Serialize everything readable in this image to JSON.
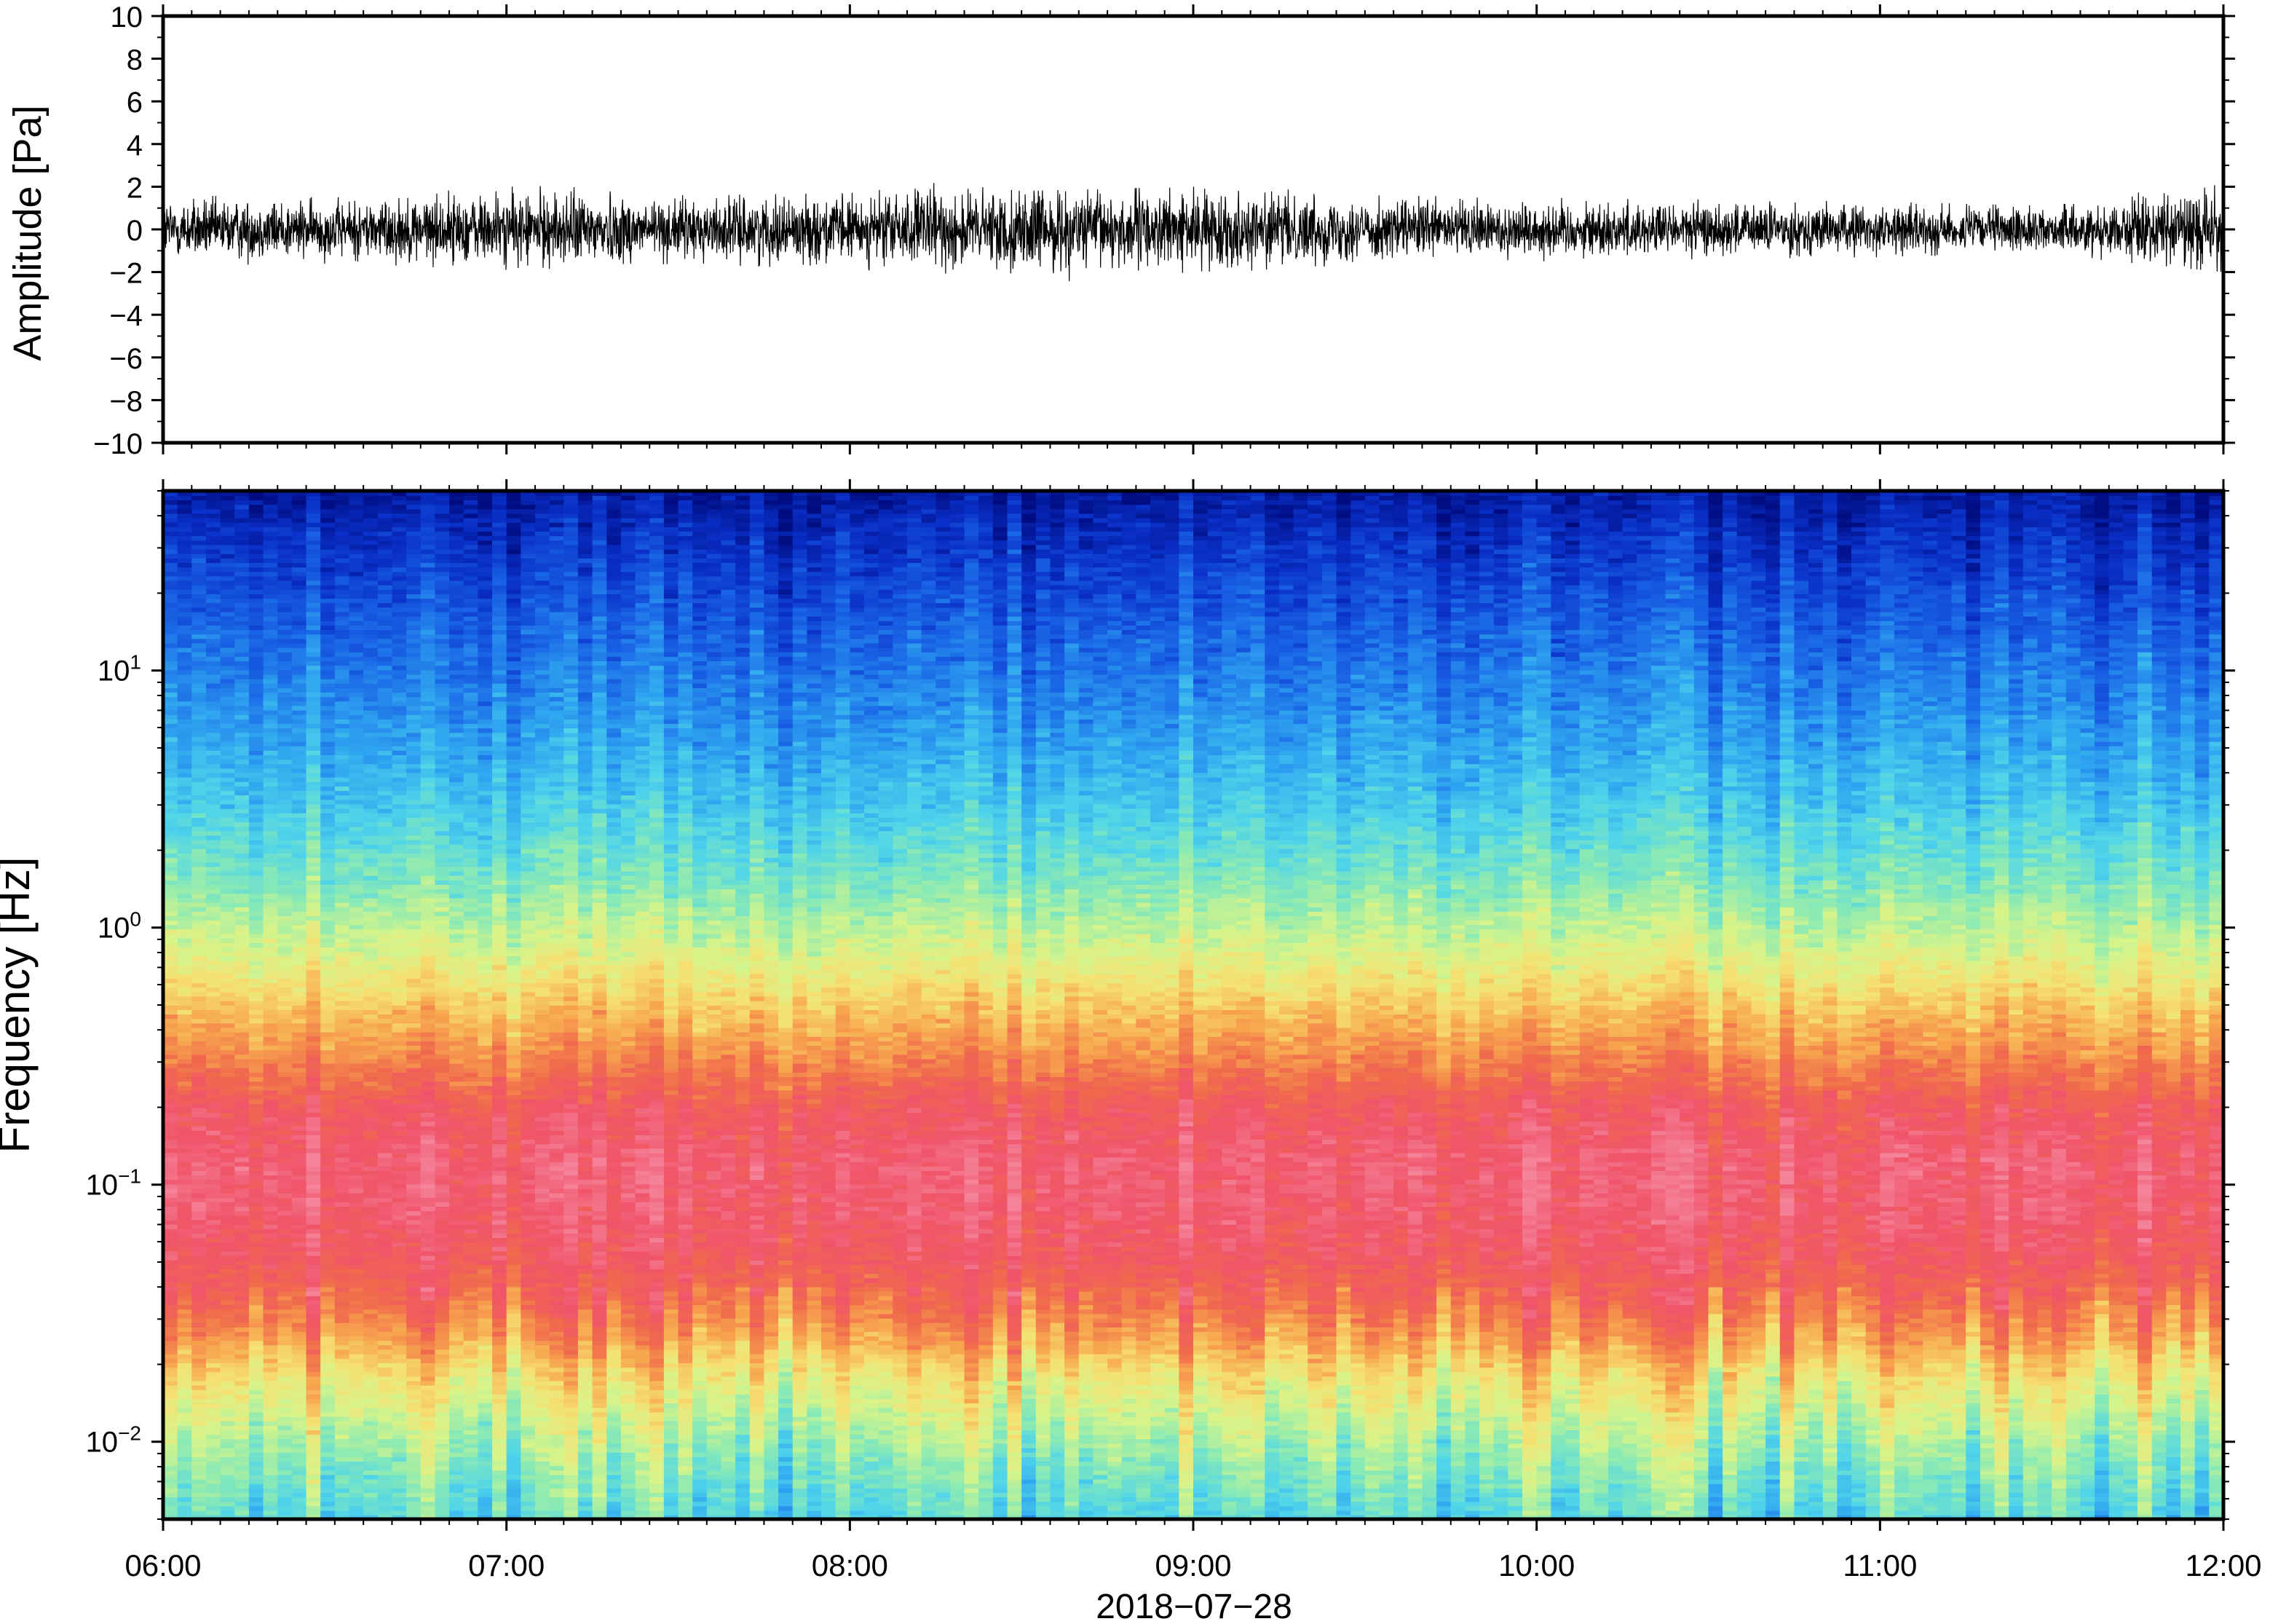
{
  "chart_data": [
    {
      "type": "line",
      "ylabel": "Amplitude [Pa]",
      "ylim": [
        -10,
        10
      ],
      "yticks": [
        -10,
        -8,
        -6,
        -4,
        -2,
        0,
        2,
        4,
        6,
        8,
        10
      ],
      "ytick_labels": [
        "−10",
        "−8",
        "−6",
        "−4",
        "−2",
        "0",
        "2",
        "4",
        "6",
        "8",
        "10"
      ],
      "xlim": [
        "06:00",
        "12:00"
      ],
      "line_color": "#000000",
      "noise_envelope": {
        "x": [
          "06:00",
          "06:30",
          "07:00",
          "07:15",
          "07:30",
          "08:00",
          "08:15",
          "08:30",
          "09:00",
          "09:15",
          "09:30",
          "10:00",
          "10:30",
          "11:00",
          "11:30",
          "12:00"
        ],
        "max": [
          1.6,
          1.5,
          2.0,
          2.1,
          1.6,
          1.7,
          2.2,
          1.8,
          2.0,
          1.9,
          1.6,
          1.5,
          1.4,
          1.3,
          1.1,
          2.4
        ],
        "min": [
          -1.7,
          -1.6,
          -1.9,
          -1.8,
          -1.6,
          -1.9,
          -2.0,
          -2.6,
          -2.0,
          -1.9,
          -1.6,
          -1.5,
          -1.4,
          -1.3,
          -1.2,
          -2.0
        ]
      }
    },
    {
      "type": "heatmap",
      "xlabel": "2018−07−28",
      "ylabel": "Frequency [Hz]",
      "yscale": "log",
      "ylim": [
        0.005,
        50
      ],
      "xlim": [
        "06:00",
        "12:00"
      ],
      "xticks": [
        "06:00",
        "07:00",
        "08:00",
        "09:00",
        "10:00",
        "11:00",
        "12:00"
      ],
      "ytick_labels": [
        {
          "base": "10",
          "exp": "−2",
          "value": 0.01
        },
        {
          "base": "10",
          "exp": "−1",
          "value": 0.1
        },
        {
          "base": "10",
          "exp": "0",
          "value": 1
        },
        {
          "base": "10",
          "exp": "1",
          "value": 10
        }
      ],
      "colormap": [
        "#000c80",
        "#0a30c8",
        "#1a66e6",
        "#2fa4f0",
        "#4fd4ea",
        "#8aeab4",
        "#d6f48a",
        "#f6e072",
        "#f7a44e",
        "#f06a4c",
        "#f0546a",
        "#f5849a"
      ],
      "level_profile": {
        "freq_hz": [
          0.005,
          0.008,
          0.012,
          0.018,
          0.025,
          0.035,
          0.05,
          0.08,
          0.12,
          0.2,
          0.3,
          0.5,
          0.8,
          1.5,
          3,
          6,
          10,
          20,
          35,
          50
        ],
        "level": [
          0.38,
          0.45,
          0.53,
          0.62,
          0.73,
          0.82,
          0.88,
          0.92,
          0.93,
          0.88,
          0.78,
          0.67,
          0.56,
          0.44,
          0.34,
          0.26,
          0.21,
          0.14,
          0.08,
          0.03
        ]
      }
    }
  ]
}
